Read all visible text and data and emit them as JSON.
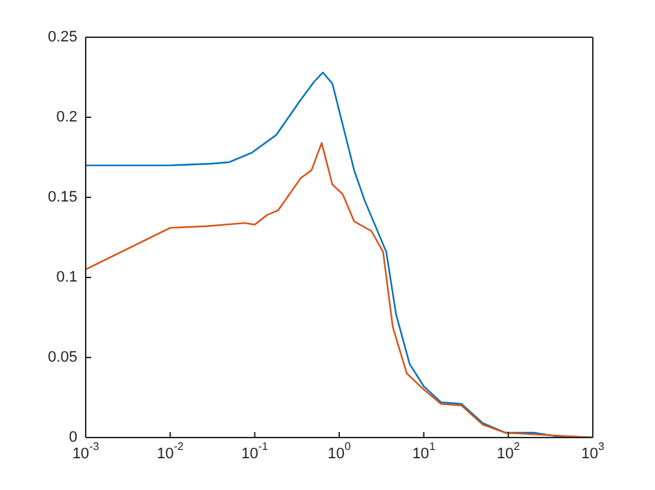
{
  "chart_data": {
    "type": "line",
    "log": "x",
    "legend": false,
    "marker": "none",
    "line_style": "solid",
    "xlim": [
      0.001,
      1000
    ],
    "xticks": [
      {
        "value": 0.001,
        "label": "10$^{-3}$"
      },
      {
        "value": 0.01,
        "label": "10$^{-2}$"
      },
      {
        "value": 0.1,
        "label": "10$^{-1}$"
      },
      {
        "value": 1,
        "label": "10$^{0}$"
      },
      {
        "value": 10,
        "label": "10$^{1}$"
      },
      {
        "value": 100,
        "label": "10$^{2}$"
      },
      {
        "value": 1000,
        "label": "10$^{3}$"
      }
    ],
    "ylim": [
      0,
      0.25
    ],
    "yticks": [
      0,
      0.05,
      0.1,
      0.15,
      0.2,
      0.25
    ],
    "series": [
      {
        "color": "#0072bd",
        "x": [
          0.001,
          0.01,
          0.03,
          0.05,
          0.093,
          0.18,
          0.34,
          0.5,
          0.64,
          0.83,
          1.5,
          2.0,
          3.6,
          4.7,
          6.8,
          10,
          16,
          28,
          50,
          93,
          200,
          350,
          1000
        ],
        "values": [
          0.17,
          0.17,
          0.171,
          0.172,
          0.178,
          0.189,
          0.21,
          0.222,
          0.228,
          0.221,
          0.167,
          0.148,
          0.116,
          0.077,
          0.046,
          0.032,
          0.022,
          0.021,
          0.009,
          0.003,
          0.003,
          0.001,
          0
        ]
      },
      {
        "color": "#d95319",
        "x": [
          0.001,
          0.01,
          0.027,
          0.076,
          0.1,
          0.14,
          0.19,
          0.35,
          0.47,
          0.62,
          0.83,
          1.1,
          1.5,
          2.4,
          3.3,
          4.3,
          6.3,
          10,
          16,
          28,
          50,
          93,
          200,
          1000
        ],
        "values": [
          0.105,
          0.131,
          0.132,
          0.134,
          0.133,
          0.139,
          0.142,
          0.162,
          0.167,
          0.184,
          0.158,
          0.152,
          0.135,
          0.129,
          0.116,
          0.069,
          0.04,
          0.03,
          0.021,
          0.02,
          0.008,
          0.003,
          0.002,
          0
        ]
      }
    ]
  }
}
